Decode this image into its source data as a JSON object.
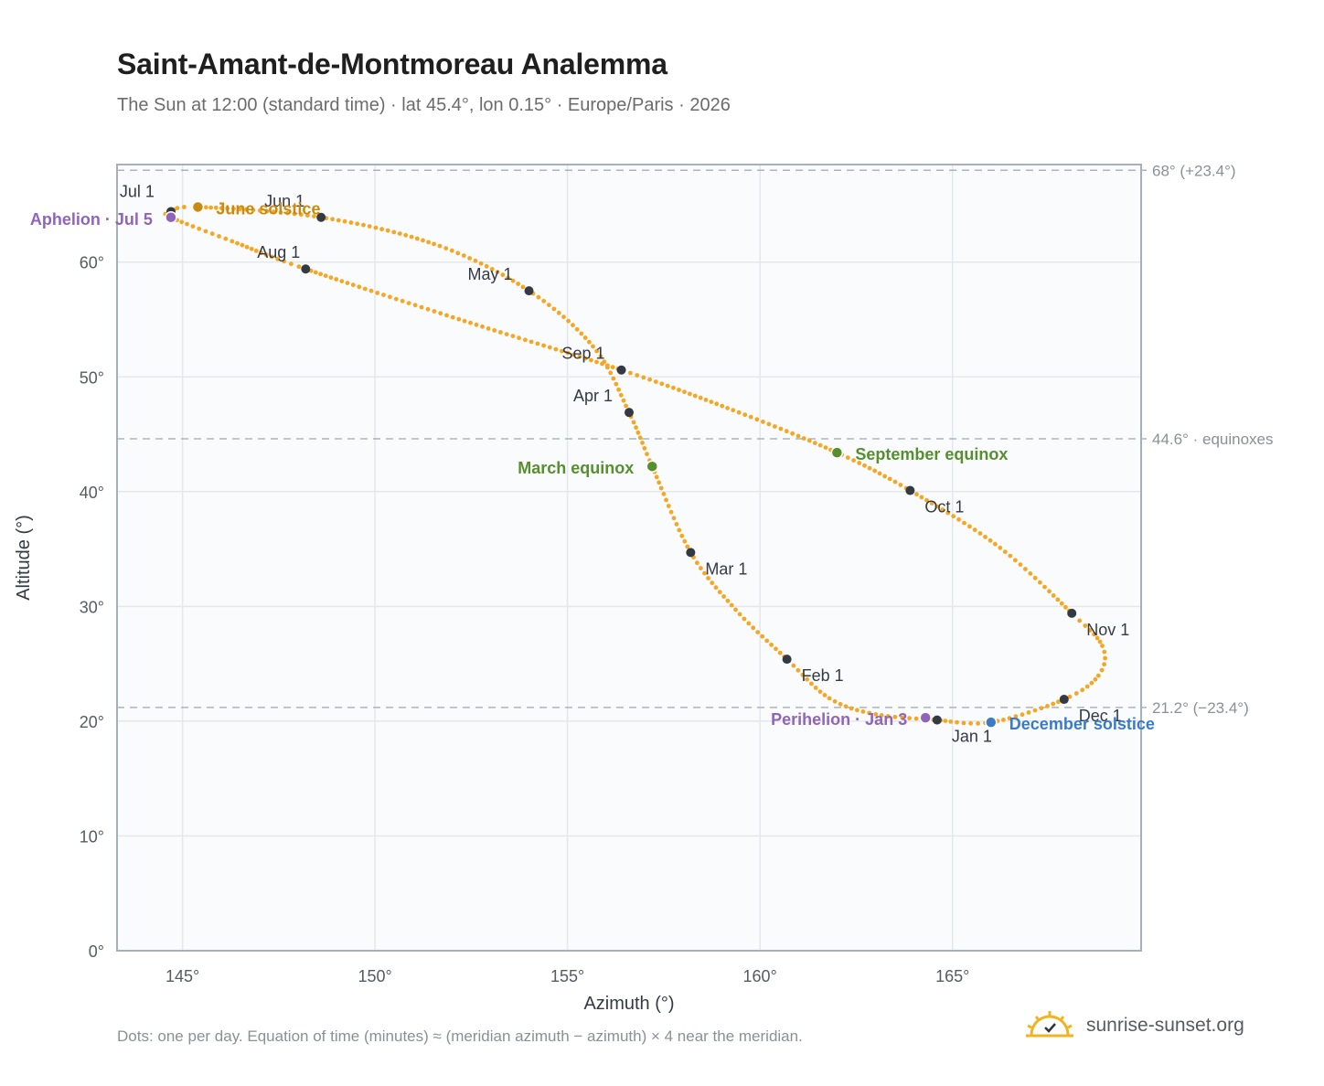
{
  "header": {
    "title": "Saint-Amant-de-Montmoreau Analemma",
    "subtitle": "The Sun at 12:00 (standard time) · lat 45.4°, lon 0.15° · Europe/Paris · 2026"
  },
  "footer": {
    "note": "Dots: one per day. Equation of time (minutes) ≈ (meridian azimuth − azimuth) × 4 near the meridian.",
    "brand": "sunrise-sunset.org",
    "brand_icon": "sun-logo-icon"
  },
  "colors": {
    "curve": "#f5a623",
    "month_marker": "#333a44",
    "aphelion": "#9065b8",
    "perihelion": "#9065b8",
    "june_solstice": "#c98a0f",
    "december_solstice": "#3a7bc8",
    "equinox": "#568f2e",
    "reference_line": "#aab4c0",
    "plot_background": "#fafbfd",
    "grid": "#e4e7eb"
  },
  "chart_data": {
    "type": "scatter",
    "xlabel": "Azimuth (°)",
    "ylabel": "Altitude (°)",
    "xlim": [
      143.3,
      169.9
    ],
    "ylim": [
      0,
      68.5
    ],
    "xticks": [
      145,
      150,
      155,
      160,
      165
    ],
    "xtick_labels": [
      "145°",
      "150°",
      "155°",
      "160°",
      "165°"
    ],
    "yticks": [
      0,
      10,
      20,
      30,
      40,
      50,
      60
    ],
    "ytick_labels": [
      "0°",
      "10°",
      "20°",
      "30°",
      "40°",
      "50°",
      "60°"
    ],
    "grid": true,
    "reference_lines": [
      {
        "y": 68.0,
        "label": "68° (+23.4°)"
      },
      {
        "y": 44.6,
        "label": "44.6° · equinoxes"
      },
      {
        "y": 21.2,
        "label": "21.2° (−23.4°)"
      }
    ],
    "month_markers": [
      {
        "label": "Jan 1",
        "azimuth": 164.6,
        "altitude": 20.1
      },
      {
        "label": "Feb 1",
        "azimuth": 160.7,
        "altitude": 25.4
      },
      {
        "label": "Mar 1",
        "azimuth": 158.2,
        "altitude": 34.7
      },
      {
        "label": "Apr 1",
        "azimuth": 156.6,
        "altitude": 46.9
      },
      {
        "label": "May 1",
        "azimuth": 154.0,
        "altitude": 57.5
      },
      {
        "label": "Jun 1",
        "azimuth": 148.6,
        "altitude": 63.9
      },
      {
        "label": "Jul 1",
        "azimuth": 144.7,
        "altitude": 64.4
      },
      {
        "label": "Aug 1",
        "azimuth": 148.2,
        "altitude": 59.4
      },
      {
        "label": "Sep 1",
        "azimuth": 156.4,
        "altitude": 50.6
      },
      {
        "label": "Oct 1",
        "azimuth": 163.9,
        "altitude": 40.1
      },
      {
        "label": "Nov 1",
        "azimuth": 168.1,
        "altitude": 29.4
      },
      {
        "label": "Dec 1",
        "azimuth": 167.9,
        "altitude": 21.9
      }
    ],
    "events": [
      {
        "label": "Aphelion · Jul 5",
        "azimuth": 144.7,
        "altitude": 63.9,
        "color_key": "aphelion"
      },
      {
        "label": "June solstice",
        "azimuth": 145.4,
        "altitude": 64.8,
        "color_key": "june_solstice"
      },
      {
        "label": "March equinox",
        "azimuth": 157.2,
        "altitude": 42.2,
        "color_key": "equinox"
      },
      {
        "label": "September equinox",
        "azimuth": 162.0,
        "altitude": 43.4,
        "color_key": "equinox"
      },
      {
        "label": "Perihelion · Jan 3",
        "azimuth": 164.3,
        "altitude": 20.3,
        "color_key": "perihelion"
      },
      {
        "label": "December solstice",
        "azimuth": 166.0,
        "altitude": 19.9,
        "color_key": "december_solstice"
      }
    ],
    "curve_path": [
      {
        "azimuth": 164.6,
        "altitude": 20.1
      },
      {
        "azimuth": 163.0,
        "altitude": 20.6
      },
      {
        "azimuth": 161.8,
        "altitude": 22.0
      },
      {
        "azimuth": 160.7,
        "altitude": 25.4
      },
      {
        "azimuth": 159.4,
        "altitude": 29.6
      },
      {
        "azimuth": 158.2,
        "altitude": 34.7
      },
      {
        "azimuth": 157.2,
        "altitude": 42.2
      },
      {
        "azimuth": 156.6,
        "altitude": 46.9
      },
      {
        "azimuth": 155.7,
        "altitude": 52.5
      },
      {
        "azimuth": 154.0,
        "altitude": 57.5
      },
      {
        "azimuth": 151.6,
        "altitude": 61.5
      },
      {
        "azimuth": 148.6,
        "altitude": 63.9
      },
      {
        "azimuth": 145.4,
        "altitude": 64.8
      },
      {
        "azimuth": 144.7,
        "altitude": 64.4
      },
      {
        "azimuth": 144.7,
        "altitude": 63.9
      },
      {
        "azimuth": 146.3,
        "altitude": 61.8
      },
      {
        "azimuth": 148.2,
        "altitude": 59.4
      },
      {
        "azimuth": 152.2,
        "altitude": 55.0
      },
      {
        "azimuth": 156.4,
        "altitude": 50.6
      },
      {
        "azimuth": 159.3,
        "altitude": 47.1
      },
      {
        "azimuth": 162.0,
        "altitude": 43.4
      },
      {
        "azimuth": 163.9,
        "altitude": 40.1
      },
      {
        "azimuth": 166.2,
        "altitude": 35.2
      },
      {
        "azimuth": 168.1,
        "altitude": 29.4
      },
      {
        "azimuth": 168.9,
        "altitude": 26.5
      },
      {
        "azimuth": 168.8,
        "altitude": 24.0
      },
      {
        "azimuth": 167.9,
        "altitude": 21.9
      },
      {
        "azimuth": 166.0,
        "altitude": 19.9
      },
      {
        "azimuth": 164.6,
        "altitude": 20.1
      }
    ]
  }
}
